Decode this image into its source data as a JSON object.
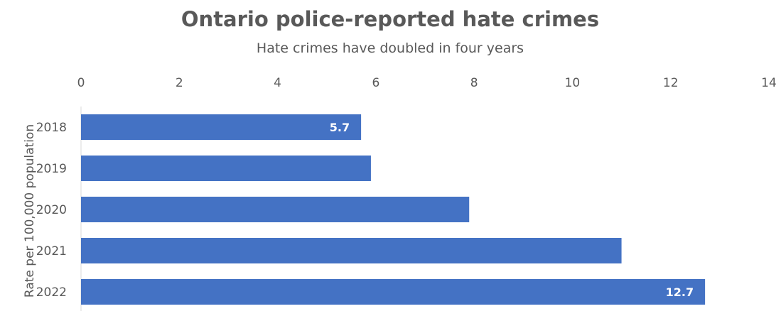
{
  "chart_data": {
    "type": "bar",
    "orientation": "horizontal",
    "title": "Ontario police-reported hate crimes",
    "subtitle": "Hate crimes have doubled in four years",
    "xlabel": "",
    "ylabel": "Rate per 100,000 population",
    "categories": [
      "2018",
      "2019",
      "2020",
      "2021",
      "2022"
    ],
    "values": [
      5.7,
      5.9,
      7.9,
      11.0,
      12.7
    ],
    "data_labels": [
      "5.7",
      "",
      "",
      "",
      "12.7"
    ],
    "xlim": [
      0,
      14
    ],
    "x_ticks": [
      "0",
      "2",
      "4",
      "6",
      "8",
      "10",
      "12",
      "14"
    ],
    "x_axis_position": "top",
    "grid": false,
    "bar_color": "#4472C4",
    "text_color": "#595959"
  }
}
